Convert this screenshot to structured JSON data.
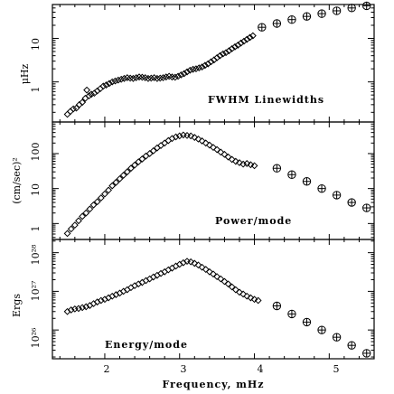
{
  "chart_data": [
    {
      "type": "scatter",
      "panel_label": "FWHM Linewidths",
      "ylabel": "μHz",
      "yscale": "log",
      "ylim": [
        0.12,
        60
      ],
      "ytick_labels": [
        "1",
        "10"
      ],
      "ytick_values": [
        1,
        10
      ],
      "xlim": [
        1.3,
        5.6
      ],
      "low_freq_points": [
        [
          1.5,
          0.18
        ],
        [
          1.54,
          0.21
        ],
        [
          1.58,
          0.24
        ],
        [
          1.62,
          0.25
        ],
        [
          1.66,
          0.3
        ],
        [
          1.7,
          0.34
        ],
        [
          1.74,
          0.42
        ],
        [
          1.76,
          0.65
        ],
        [
          1.79,
          0.48
        ],
        [
          1.82,
          0.52
        ],
        [
          1.86,
          0.55
        ],
        [
          1.9,
          0.62
        ],
        [
          1.94,
          0.7
        ],
        [
          1.98,
          0.8
        ],
        [
          2.02,
          0.85
        ],
        [
          2.06,
          0.92
        ],
        [
          2.1,
          1.0
        ],
        [
          2.14,
          1.05
        ],
        [
          2.18,
          1.1
        ],
        [
          2.22,
          1.15
        ],
        [
          2.26,
          1.2
        ],
        [
          2.3,
          1.25
        ],
        [
          2.34,
          1.22
        ],
        [
          2.38,
          1.2
        ],
        [
          2.42,
          1.25
        ],
        [
          2.46,
          1.3
        ],
        [
          2.5,
          1.28
        ],
        [
          2.54,
          1.25
        ],
        [
          2.58,
          1.2
        ],
        [
          2.62,
          1.22
        ],
        [
          2.66,
          1.25
        ],
        [
          2.7,
          1.2
        ],
        [
          2.74,
          1.22
        ],
        [
          2.78,
          1.25
        ],
        [
          2.82,
          1.3
        ],
        [
          2.86,
          1.35
        ],
        [
          2.9,
          1.3
        ],
        [
          2.94,
          1.28
        ],
        [
          2.98,
          1.35
        ],
        [
          3.02,
          1.45
        ],
        [
          3.06,
          1.55
        ],
        [
          3.1,
          1.7
        ],
        [
          3.14,
          1.85
        ],
        [
          3.18,
          1.95
        ],
        [
          3.22,
          2.0
        ],
        [
          3.26,
          2.1
        ],
        [
          3.3,
          2.2
        ],
        [
          3.34,
          2.4
        ],
        [
          3.38,
          2.6
        ],
        [
          3.42,
          2.9
        ],
        [
          3.46,
          3.2
        ],
        [
          3.5,
          3.6
        ],
        [
          3.54,
          4.0
        ],
        [
          3.58,
          4.4
        ],
        [
          3.62,
          4.7
        ],
        [
          3.66,
          5.2
        ],
        [
          3.7,
          5.8
        ],
        [
          3.74,
          6.4
        ],
        [
          3.78,
          7.0
        ],
        [
          3.82,
          7.8
        ],
        [
          3.86,
          8.6
        ],
        [
          3.9,
          9.5
        ],
        [
          3.94,
          10.5
        ],
        [
          3.98,
          11.5
        ]
      ],
      "high_freq_points": [
        [
          4.1,
          18
        ],
        [
          4.3,
          22
        ],
        [
          4.5,
          27
        ],
        [
          4.7,
          32
        ],
        [
          4.9,
          37
        ],
        [
          5.1,
          43
        ],
        [
          5.3,
          50
        ],
        [
          5.5,
          56
        ]
      ]
    },
    {
      "type": "scatter",
      "panel_label": "Power/mode",
      "ylabel": "(cm/sec)²",
      "yscale": "log",
      "ylim": [
        0.35,
        800
      ],
      "ytick_labels": [
        "1",
        "10",
        "100"
      ],
      "ytick_values": [
        1,
        10,
        100
      ],
      "xlim": [
        1.3,
        5.6
      ],
      "low_freq_points": [
        [
          1.5,
          0.52
        ],
        [
          1.55,
          0.7
        ],
        [
          1.6,
          0.9
        ],
        [
          1.65,
          1.2
        ],
        [
          1.7,
          1.6
        ],
        [
          1.75,
          2.0
        ],
        [
          1.8,
          2.6
        ],
        [
          1.85,
          3.4
        ],
        [
          1.9,
          4.2
        ],
        [
          1.95,
          5.4
        ],
        [
          2.0,
          7.0
        ],
        [
          2.05,
          9.0
        ],
        [
          2.1,
          12.0
        ],
        [
          2.15,
          15.0
        ],
        [
          2.2,
          19.0
        ],
        [
          2.25,
          24.0
        ],
        [
          2.3,
          30.0
        ],
        [
          2.35,
          38.0
        ],
        [
          2.4,
          47.0
        ],
        [
          2.45,
          58.0
        ],
        [
          2.5,
          70.0
        ],
        [
          2.55,
          85.0
        ],
        [
          2.6,
          100
        ],
        [
          2.65,
          120
        ],
        [
          2.7,
          145
        ],
        [
          2.75,
          170
        ],
        [
          2.8,
          200
        ],
        [
          2.85,
          235
        ],
        [
          2.9,
          270
        ],
        [
          2.95,
          300
        ],
        [
          3.0,
          320
        ],
        [
          3.05,
          340
        ],
        [
          3.1,
          330
        ],
        [
          3.15,
          320
        ],
        [
          3.2,
          290
        ],
        [
          3.25,
          260
        ],
        [
          3.3,
          230
        ],
        [
          3.35,
          200
        ],
        [
          3.4,
          175
        ],
        [
          3.45,
          150
        ],
        [
          3.5,
          130
        ],
        [
          3.55,
          110
        ],
        [
          3.6,
          95
        ],
        [
          3.65,
          80
        ],
        [
          3.7,
          68
        ],
        [
          3.75,
          60
        ],
        [
          3.8,
          55
        ],
        [
          3.85,
          50
        ],
        [
          3.9,
          52
        ],
        [
          3.95,
          48
        ],
        [
          4.0,
          45
        ]
      ],
      "high_freq_points": [
        [
          4.3,
          38
        ],
        [
          4.5,
          25
        ],
        [
          4.7,
          16
        ],
        [
          4.9,
          10
        ],
        [
          5.1,
          6.5
        ],
        [
          5.3,
          4.0
        ],
        [
          5.5,
          2.8
        ]
      ]
    },
    {
      "type": "scatter",
      "panel_label": "Energy/mode",
      "ylabel": "Ergs",
      "yscale": "log",
      "ylim": [
        1.8e+25,
        2.2e+28
      ],
      "ytick_labels": [
        "10²⁸",
        "10²⁷",
        "10²⁶"
      ],
      "ytick_values": [
        1e+28,
        1e+27,
        1e+26
      ],
      "xlim": [
        1.3,
        5.6
      ],
      "low_freq_points": [
        [
          1.5,
          3e+26
        ],
        [
          1.55,
          3.3e+26
        ],
        [
          1.6,
          3.5e+26
        ],
        [
          1.65,
          3.6e+26
        ],
        [
          1.7,
          3.8e+26
        ],
        [
          1.75,
          4e+26
        ],
        [
          1.8,
          4.3e+26
        ],
        [
          1.85,
          4.8e+26
        ],
        [
          1.9,
          5.3e+26
        ],
        [
          1.95,
          5.8e+26
        ],
        [
          2.0,
          6.2e+26
        ],
        [
          2.05,
          6.8e+26
        ],
        [
          2.1,
          7.5e+26
        ],
        [
          2.15,
          8.2e+26
        ],
        [
          2.2,
          9e+26
        ],
        [
          2.25,
          1e+27
        ],
        [
          2.3,
          1.1e+27
        ],
        [
          2.35,
          1.25e+27
        ],
        [
          2.4,
          1.4e+27
        ],
        [
          2.45,
          1.55e+27
        ],
        [
          2.5,
          1.7e+27
        ],
        [
          2.55,
          1.9e+27
        ],
        [
          2.6,
          2.1e+27
        ],
        [
          2.65,
          2.35e+27
        ],
        [
          2.7,
          2.6e+27
        ],
        [
          2.75,
          2.9e+27
        ],
        [
          2.8,
          3.2e+27
        ],
        [
          2.85,
          3.6e+27
        ],
        [
          2.9,
          4e+27
        ],
        [
          2.95,
          4.5e+27
        ],
        [
          3.0,
          5e+27
        ],
        [
          3.05,
          5.5e+27
        ],
        [
          3.1,
          6e+27
        ],
        [
          3.15,
          5.8e+27
        ],
        [
          3.2,
          5.3e+27
        ],
        [
          3.25,
          4.8e+27
        ],
        [
          3.3,
          4.2e+27
        ],
        [
          3.35,
          3.7e+27
        ],
        [
          3.4,
          3.2e+27
        ],
        [
          3.45,
          2.8e+27
        ],
        [
          3.5,
          2.4e+27
        ],
        [
          3.55,
          2.1e+27
        ],
        [
          3.6,
          1.8e+27
        ],
        [
          3.65,
          1.55e+27
        ],
        [
          3.7,
          1.3e+27
        ],
        [
          3.75,
          1.1e+27
        ],
        [
          3.8,
          9.5e+26
        ],
        [
          3.85,
          8.5e+26
        ],
        [
          3.9,
          7.5e+26
        ],
        [
          3.95,
          6.8e+26
        ],
        [
          4.0,
          6.2e+26
        ],
        [
          4.05,
          5.8e+26
        ]
      ],
      "high_freq_points": [
        [
          4.3,
          4.2e+26
        ],
        [
          4.5,
          2.6e+26
        ],
        [
          4.7,
          1.6e+26
        ],
        [
          4.9,
          1e+26
        ],
        [
          5.1,
          6.5e+25
        ],
        [
          5.3,
          4e+25
        ],
        [
          5.5,
          2.5e+25
        ]
      ]
    }
  ],
  "x_axis": {
    "label": "Frequency, mHz",
    "ticks": [
      2,
      3,
      4,
      5
    ],
    "tick_labels": [
      "2",
      "3",
      "4",
      "5"
    ]
  }
}
